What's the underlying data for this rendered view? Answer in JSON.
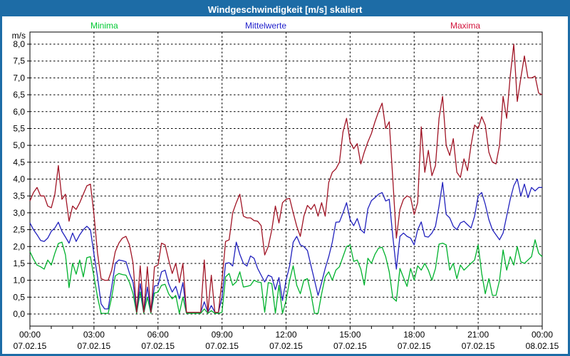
{
  "window": {
    "title": "Windgeschwindigkeit [m/s] skaliert"
  },
  "colors": {
    "titlebar": "#1d6ca6",
    "frame": "#1d6ca6",
    "plot_background": "#ffffff",
    "plot_border": "#000000",
    "grid": "#000000"
  },
  "legend": {
    "position": "top",
    "items": [
      {
        "label": "Minima",
        "color": "#00c832"
      },
      {
        "label": "Mittelwerte",
        "color": "#2222cc"
      },
      {
        "label": "Maxima",
        "color": "#d2143c"
      }
    ]
  },
  "chart_data": {
    "type": "line",
    "title": "Windgeschwindigkeit [m/s] skaliert",
    "ylabel": "m/s",
    "xlabel": "",
    "ylim": [
      0,
      8
    ],
    "y_tick_step": 0.5,
    "y_tick_labels": [
      "0,0",
      "0,5",
      "1,0",
      "1,5",
      "2,0",
      "2,5",
      "3,0",
      "3,5",
      "4,0",
      "4,5",
      "5,0",
      "5,5",
      "6,0",
      "6,5",
      "7,0",
      "7,5",
      "8,0"
    ],
    "x_range_hours": 24,
    "x_major_tick_hours": 3,
    "x_minor_tick_hours": 1,
    "grid": "dashed",
    "legend_position": "top",
    "sample_interval_minutes": 10,
    "x_ticks": [
      {
        "time": "00:00",
        "date": "07.02.15"
      },
      {
        "time": "03:00",
        "date": "07.02.15"
      },
      {
        "time": "06:00",
        "date": "07.02.15"
      },
      {
        "time": "09:00",
        "date": "07.02.15"
      },
      {
        "time": "12:00",
        "date": "07.02.15"
      },
      {
        "time": "15:00",
        "date": "07.02.15"
      },
      {
        "time": "18:00",
        "date": "07.02.15"
      },
      {
        "time": "21:00",
        "date": "07.02.15"
      },
      {
        "time": "00:00",
        "date": "08.02.15"
      }
    ],
    "series": [
      {
        "name": "Minima",
        "color": "#00b22d",
        "values": [
          1.85,
          1.63,
          1.45,
          1.4,
          1.33,
          1.6,
          1.45,
          1.8,
          2.09,
          2.13,
          1.75,
          0.78,
          1.5,
          1.18,
          1.6,
          1.1,
          1.67,
          1.7,
          1.1,
          0.5,
          0.02,
          0.02,
          0.02,
          0.5,
          1.13,
          1.2,
          1.17,
          1.15,
          0.93,
          0.6,
          0.02,
          0.65,
          0.02,
          0.5,
          0.02,
          0.62,
          0.65,
          0.85,
          0.88,
          0.6,
          0.45,
          0.55,
          0.02,
          0.5,
          0.02,
          0.02,
          0.02,
          0.02,
          0.02,
          0.15,
          0.02,
          0.1,
          0.02,
          0.02,
          0.05,
          1.1,
          1.2,
          0.85,
          0.95,
          1.25,
          0.8,
          0.82,
          0.85,
          1.0,
          0.95,
          0.93,
          0.05,
          0.93,
          0.9,
          0.02,
          0.85,
          0.02,
          0.4,
          1.0,
          1.43,
          0.85,
          0.6,
          1.0,
          1.05,
          0.6,
          0.02,
          0.02,
          0.6,
          1.1,
          1.25,
          1.0,
          1.3,
          1.4,
          1.7,
          2.0,
          2.05,
          1.56,
          1.6,
          1.33,
          0.86,
          1.65,
          1.5,
          1.77,
          1.95,
          1.98,
          1.7,
          1.25,
          0.48,
          0.38,
          1.35,
          1.08,
          0.82,
          1.35,
          1.0,
          1.43,
          1.3,
          1.5,
          1.3,
          1.0,
          1.35,
          2.07,
          2.1,
          2.05,
          1.3,
          1.5,
          1.05,
          1.45,
          1.3,
          1.4,
          1.5,
          1.6,
          2.05,
          1.2,
          0.6,
          1.05,
          0.55,
          0.55,
          1.0,
          1.9,
          1.3,
          1.7,
          1.45,
          2.0,
          1.55,
          1.5,
          1.6,
          1.7,
          2.2,
          1.8,
          1.7
        ]
      },
      {
        "name": "Mittelwerte",
        "color": "#2121bd",
        "values": [
          2.7,
          2.5,
          2.35,
          2.18,
          2.15,
          2.25,
          2.45,
          2.55,
          2.72,
          2.45,
          2.28,
          2.1,
          2.4,
          2.15,
          2.35,
          2.5,
          2.6,
          2.5,
          1.77,
          1.1,
          0.3,
          0.15,
          0.15,
          0.8,
          1.5,
          1.6,
          1.58,
          1.55,
          1.2,
          0.93,
          0.05,
          0.9,
          0.05,
          0.8,
          0.05,
          0.83,
          0.85,
          1.25,
          1.3,
          0.9,
          0.65,
          0.82,
          0.45,
          0.93,
          0.05,
          0.05,
          0.05,
          0.05,
          0.05,
          0.36,
          0.05,
          0.25,
          0.05,
          0.05,
          0.5,
          1.5,
          1.52,
          1.42,
          2.13,
          1.77,
          1.5,
          1.42,
          1.72,
          1.65,
          1.35,
          1.15,
          0.95,
          1.15,
          1.1,
          0.72,
          1.08,
          0.4,
          1.0,
          1.43,
          2.13,
          2.3,
          2.05,
          2.0,
          1.88,
          1.43,
          1.0,
          0.55,
          0.93,
          1.35,
          1.7,
          2.13,
          2.72,
          2.73,
          3.0,
          3.3,
          2.8,
          2.62,
          2.83,
          2.5,
          2.4,
          3.12,
          3.36,
          3.45,
          3.55,
          3.6,
          3.35,
          3.4,
          2.3,
          1.33,
          2.3,
          2.4,
          2.3,
          2.25,
          2.05,
          2.5,
          2.73,
          2.3,
          2.28,
          2.4,
          2.6,
          3.2,
          3.9,
          2.95,
          2.85,
          2.6,
          2.5,
          2.7,
          2.75,
          2.65,
          2.55,
          2.9,
          3.5,
          3.6,
          3.25,
          2.8,
          2.5,
          2.35,
          2.2,
          2.4,
          2.9,
          3.4,
          3.8,
          4.0,
          3.5,
          3.85,
          3.45,
          3.75,
          3.65,
          3.75,
          3.75
        ]
      },
      {
        "name": "Maxima",
        "color": "#a01425",
        "values": [
          3.35,
          3.6,
          3.75,
          3.5,
          3.5,
          3.2,
          3.15,
          3.55,
          4.4,
          3.4,
          3.55,
          2.75,
          3.2,
          3.1,
          3.3,
          3.55,
          3.8,
          3.85,
          2.95,
          1.8,
          1.05,
          1.0,
          1.0,
          1.3,
          1.85,
          2.1,
          2.25,
          2.3,
          2.05,
          1.5,
          0.05,
          1.43,
          0.05,
          1.4,
          0.05,
          1.4,
          1.45,
          2.1,
          2.05,
          1.6,
          1.2,
          1.5,
          0.93,
          1.5,
          0.05,
          0.05,
          0.05,
          0.05,
          0.05,
          1.6,
          0.05,
          1.15,
          0.05,
          0.05,
          1.0,
          2.15,
          2.2,
          3.0,
          3.3,
          3.55,
          2.9,
          2.85,
          2.85,
          2.77,
          2.75,
          2.62,
          1.75,
          2.0,
          2.5,
          3.2,
          2.7,
          3.3,
          3.4,
          3.43,
          3.0,
          2.6,
          2.3,
          2.9,
          3.22,
          3.1,
          3.25,
          2.9,
          3.3,
          2.9,
          3.9,
          4.2,
          4.3,
          4.5,
          5.4,
          5.8,
          5.1,
          4.9,
          5.05,
          4.45,
          4.8,
          5.1,
          5.35,
          5.7,
          6.0,
          6.25,
          5.5,
          5.7,
          4.0,
          2.25,
          3.1,
          3.4,
          3.5,
          3.45,
          2.95,
          3.3,
          5.55,
          4.2,
          4.85,
          4.1,
          4.4,
          5.8,
          6.45,
          5.0,
          4.7,
          5.2,
          4.2,
          4.05,
          4.6,
          4.25,
          5.0,
          5.6,
          5.5,
          5.85,
          5.6,
          4.8,
          4.5,
          4.45,
          5.0,
          6.45,
          5.8,
          7.05,
          8.0,
          6.3,
          7.0,
          7.65,
          7.0,
          7.0,
          7.05,
          6.55,
          6.5
        ]
      }
    ]
  }
}
